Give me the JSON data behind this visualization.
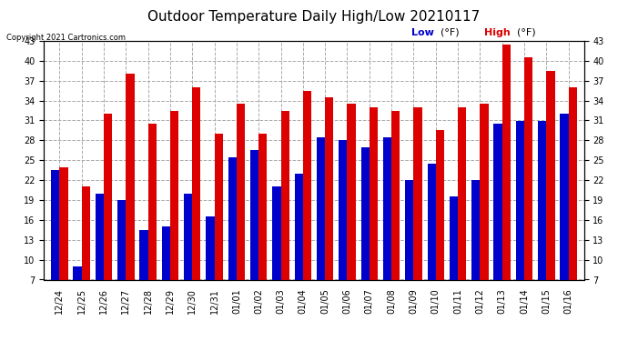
{
  "title": "Outdoor Temperature Daily High/Low 20210117",
  "copyright": "Copyright 2021 Cartronics.com",
  "legend_low": "Low",
  "legend_high": "High",
  "legend_unit": "(°F)",
  "ylim": [
    7.0,
    43.0
  ],
  "yticks": [
    7.0,
    10.0,
    13.0,
    16.0,
    19.0,
    22.0,
    25.0,
    28.0,
    31.0,
    34.0,
    37.0,
    40.0,
    43.0
  ],
  "dates": [
    "12/24",
    "12/25",
    "12/26",
    "12/27",
    "12/28",
    "12/29",
    "12/30",
    "12/31",
    "01/01",
    "01/02",
    "01/03",
    "01/04",
    "01/05",
    "01/06",
    "01/07",
    "01/08",
    "01/09",
    "01/10",
    "01/11",
    "01/12",
    "01/13",
    "01/14",
    "01/15",
    "01/16"
  ],
  "high": [
    24.0,
    21.0,
    32.0,
    38.0,
    30.5,
    32.5,
    36.0,
    29.0,
    33.5,
    29.0,
    32.5,
    35.5,
    34.5,
    33.5,
    33.0,
    32.5,
    33.0,
    29.5,
    33.0,
    33.5,
    42.5,
    40.5,
    38.5,
    36.0
  ],
  "low": [
    23.5,
    9.0,
    20.0,
    19.0,
    14.5,
    15.0,
    20.0,
    16.5,
    25.5,
    26.5,
    21.0,
    23.0,
    28.5,
    28.0,
    27.0,
    28.5,
    22.0,
    24.5,
    19.5,
    22.0,
    30.5,
    31.0,
    31.0,
    32.0
  ],
  "bar_bottom": 7.0,
  "bar_width": 0.38,
  "color_high": "#dd0000",
  "color_low": "#0000cc",
  "background_color": "#ffffff",
  "grid_color": "#aaaaaa",
  "title_fontsize": 11,
  "tick_fontsize": 7,
  "copyright_fontsize": 6,
  "legend_fontsize": 8
}
